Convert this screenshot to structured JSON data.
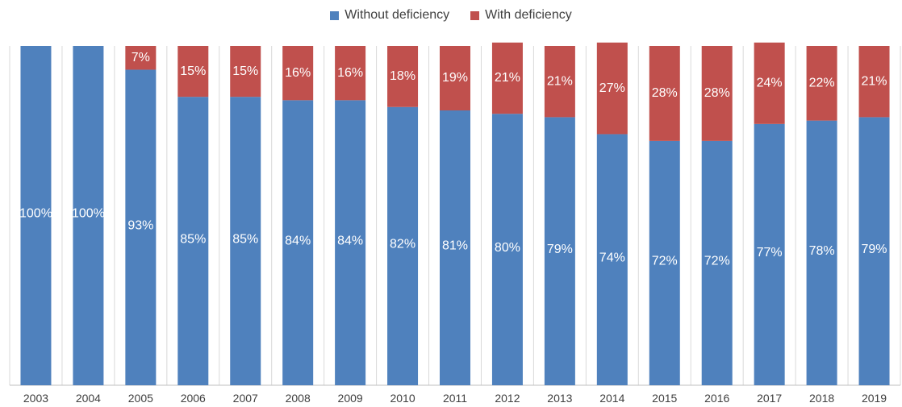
{
  "chart_data": {
    "type": "bar",
    "stacked": true,
    "categories": [
      "2003",
      "2004",
      "2005",
      "2006",
      "2007",
      "2008",
      "2009",
      "2010",
      "2011",
      "2012",
      "2013",
      "2014",
      "2015",
      "2016",
      "2017",
      "2018",
      "2019"
    ],
    "series": [
      {
        "name": "Without deficiency",
        "color": "#4f81bd",
        "values": [
          100,
          100,
          93,
          85,
          85,
          84,
          84,
          82,
          81,
          80,
          79,
          74,
          72,
          72,
          77,
          78,
          79
        ],
        "labels": [
          "100%",
          "100%",
          "93%",
          "85%",
          "85%",
          "84%",
          "84%",
          "82%",
          "81%",
          "80%",
          "79%",
          "74%",
          "72%",
          "72%",
          "77%",
          "78%",
          "79%"
        ]
      },
      {
        "name": "With deficiency",
        "color": "#c0504d",
        "values": [
          0,
          0,
          7,
          15,
          15,
          16,
          16,
          18,
          19,
          21,
          21,
          27,
          28,
          28,
          24,
          22,
          21
        ],
        "labels": [
          "",
          "",
          "7%",
          "15%",
          "15%",
          "16%",
          "16%",
          "18%",
          "19%",
          "21%",
          "21%",
          "27%",
          "28%",
          "28%",
          "24%",
          "22%",
          "21%"
        ]
      }
    ],
    "ylim": [
      0,
      100
    ],
    "grid": true,
    "legend_position": "top-center"
  }
}
